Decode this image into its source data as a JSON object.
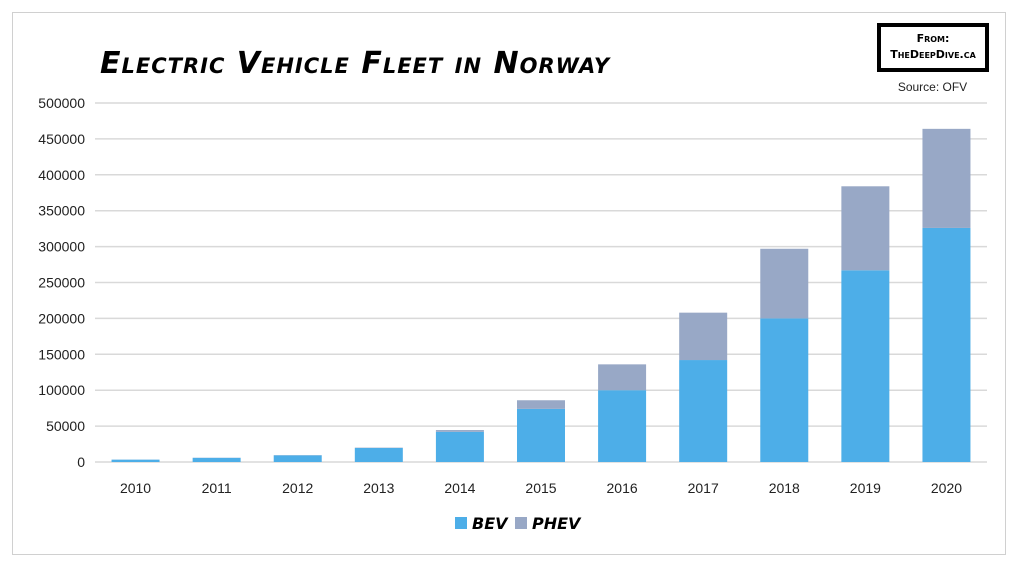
{
  "chart_data": {
    "type": "bar",
    "stacked": true,
    "title": "Electric Vehicle Fleet in Norway",
    "source": "Source: OFV",
    "watermark": "From: TheDeepDive.ca",
    "categories": [
      "2010",
      "2011",
      "2012",
      "2013",
      "2014",
      "2015",
      "2016",
      "2017",
      "2018",
      "2019",
      "2020"
    ],
    "series": [
      {
        "name": "BEV",
        "color": "#4daee8",
        "values": [
          3300,
          5800,
          9300,
          19500,
          42000,
          74000,
          100000,
          142000,
          200000,
          267000,
          326000
        ]
      },
      {
        "name": "PHEV",
        "color": "#98a8c6",
        "values": [
          100,
          200,
          300,
          500,
          2500,
          12000,
          36000,
          66000,
          97000,
          117000,
          138000
        ]
      }
    ],
    "ylim": [
      0,
      500000
    ],
    "yticks": [
      "0",
      "50000",
      "100000",
      "150000",
      "200000",
      "250000",
      "300000",
      "350000",
      "400000",
      "450000",
      "500000"
    ],
    "grid": true,
    "legend_position": "bottom"
  }
}
